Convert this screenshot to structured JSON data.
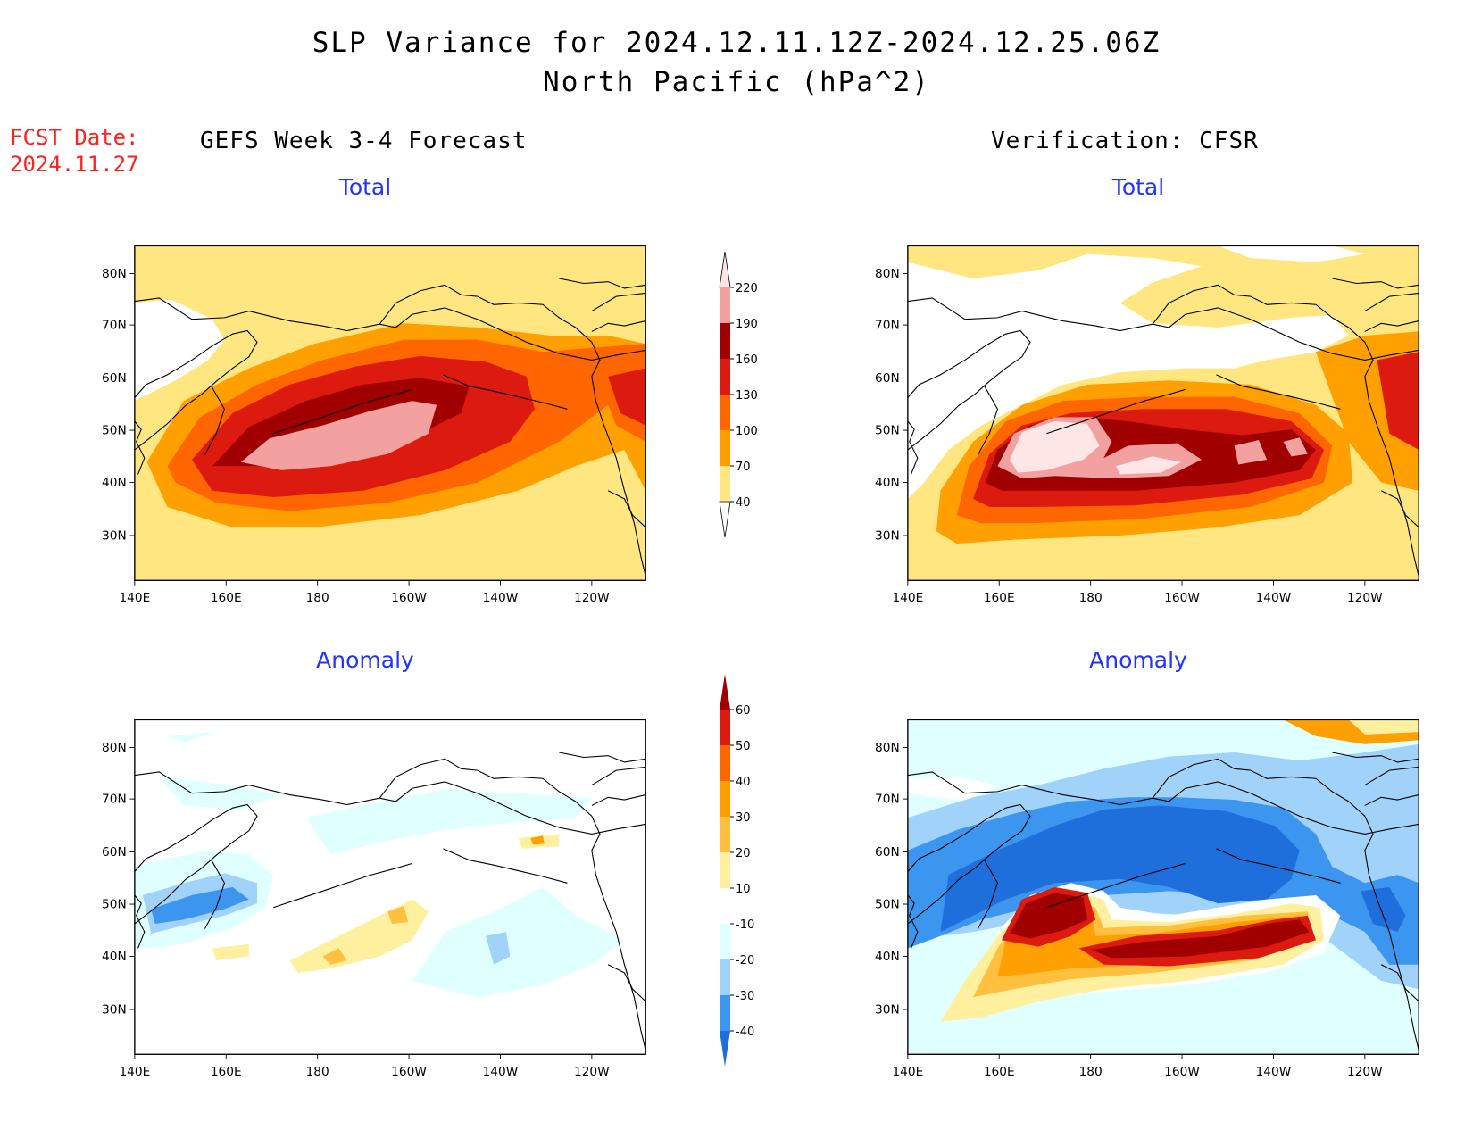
{
  "header": {
    "title": "SLP Variance for 2024.12.11.12Z-2024.12.25.06Z",
    "subtitle": "North Pacific (hPa^2)",
    "fcst_label": "FCST Date:",
    "fcst_date": "2024.11.27",
    "left_column_title": "GEFS Week 3-4 Forecast",
    "right_column_title": "Verification: CFSR"
  },
  "panels": {
    "top_left": {
      "title": "Total"
    },
    "top_right": {
      "title": "Total"
    },
    "bottom_left": {
      "title": "Anomaly"
    },
    "bottom_right": {
      "title": "Anomaly"
    }
  },
  "axes": {
    "x_ticks": [
      "140E",
      "160E",
      "180",
      "160W",
      "140W",
      "120W"
    ],
    "y_ticks": [
      "80N",
      "70N",
      "60N",
      "50N",
      "40N",
      "30N"
    ]
  },
  "colorbar_total": {
    "labels": [
      "220",
      "190",
      "160",
      "130",
      "100",
      "70",
      "40"
    ],
    "colors": [
      "#ffe6e6",
      "#f2a0a0",
      "#a00000",
      "#dd1a10",
      "#ff6600",
      "#ffa000",
      "#ffe680"
    ]
  },
  "colorbar_anomaly": {
    "labels": [
      "60",
      "50",
      "40",
      "30",
      "20",
      "10",
      "-10",
      "-20",
      "-30",
      "-40"
    ],
    "colors": [
      "#a00000",
      "#dd1a10",
      "#ff6600",
      "#ffa000",
      "#ffc040",
      "#fff0a0",
      "#ffffff",
      "#e0ffff",
      "#a0d2fa",
      "#3c96f0",
      "#1e6edc"
    ]
  },
  "map_colors": {
    "t40": "#ffe680",
    "t70": "#ffa000",
    "t100": "#ff6600",
    "t130": "#dd1a10",
    "t160": "#a00000",
    "t190": "#f2a0a0",
    "t220": "#ffe6e6",
    "a10": "#fff0a0",
    "a20": "#ffc040",
    "a30": "#ffa000",
    "a40": "#ff6600",
    "a50": "#dd1a10",
    "a60": "#a00000",
    "am10": "#e0ffff",
    "am20": "#a0d2fa",
    "am30": "#3c96f0",
    "am40": "#1e6edc"
  }
}
